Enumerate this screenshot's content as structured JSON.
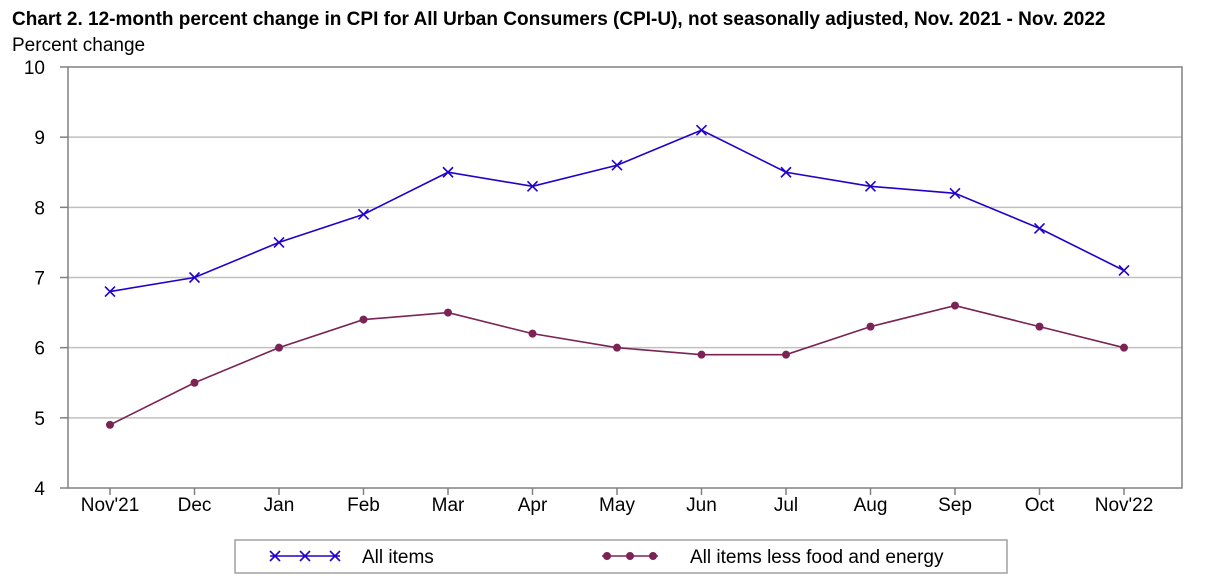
{
  "chart_data": {
    "type": "line",
    "title": "Chart 2. 12-month percent change in CPI for All Urban Consumers (CPI-U), not seasonally adjusted, Nov. 2021 - Nov. 2022",
    "ylabel": "Percent change",
    "xlabel": "",
    "ylim": [
      4,
      10
    ],
    "yticks": [
      "4",
      "5",
      "6",
      "7",
      "8",
      "9",
      "10"
    ],
    "categories": [
      "Nov'21",
      "Dec",
      "Jan",
      "Feb",
      "Mar",
      "Apr",
      "May",
      "Jun",
      "Jul",
      "Aug",
      "Sep",
      "Oct",
      "Nov'22"
    ],
    "grid": true,
    "legend_position": "bottom",
    "series": [
      {
        "name": "All items",
        "color": "#2200cc",
        "marker": "x",
        "values": [
          6.8,
          7.0,
          7.5,
          7.9,
          8.5,
          8.3,
          8.6,
          9.1,
          8.5,
          8.3,
          8.2,
          7.7,
          7.1
        ]
      },
      {
        "name": "All items less food and energy",
        "color": "#7b2355",
        "marker": "circle",
        "values": [
          4.9,
          5.5,
          6.0,
          6.4,
          6.5,
          6.2,
          6.0,
          5.9,
          5.9,
          6.3,
          6.6,
          6.3,
          6.0
        ]
      }
    ]
  }
}
